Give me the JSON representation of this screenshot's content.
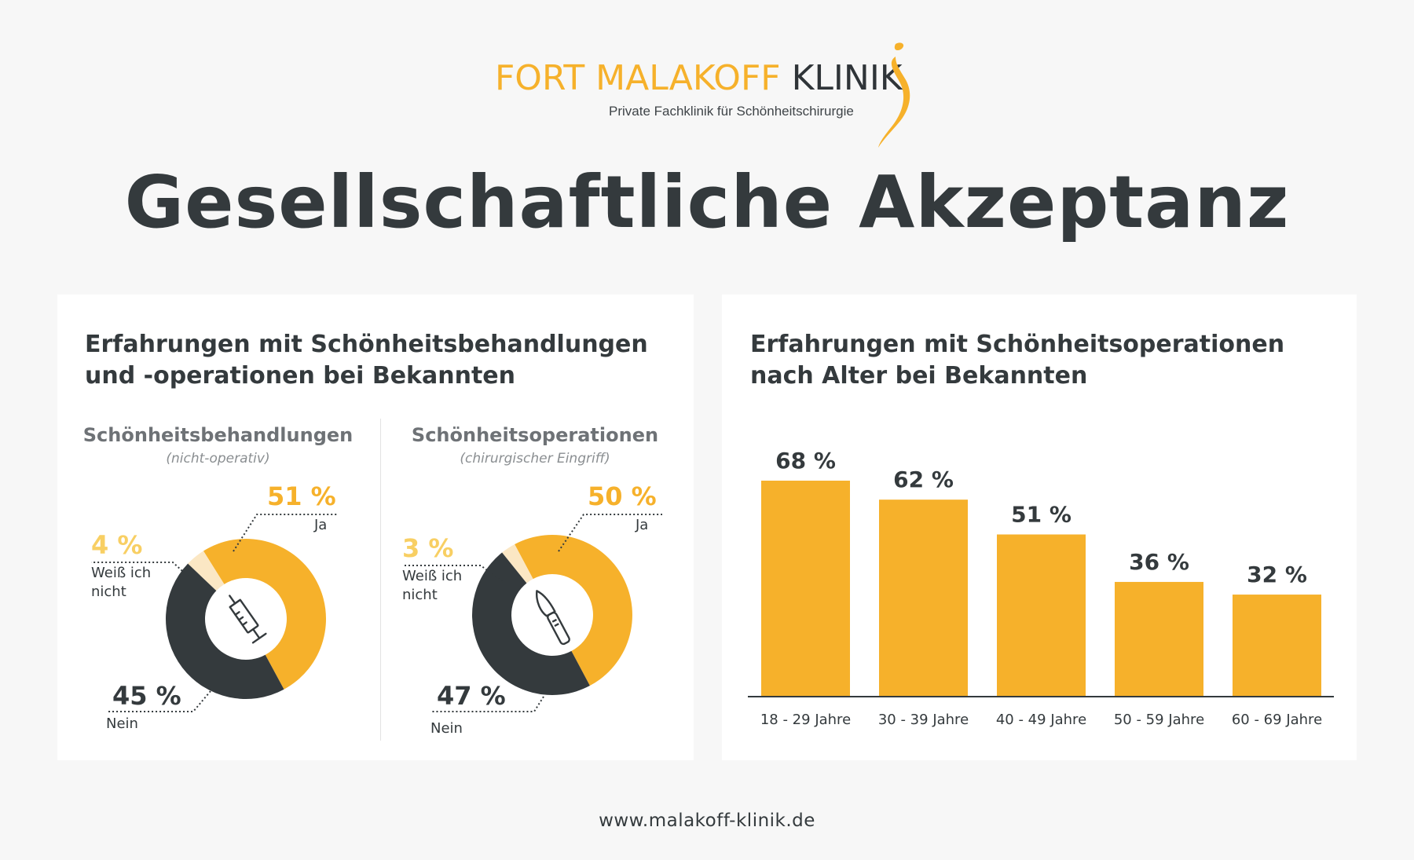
{
  "header": {
    "brand_part1": "FORT MALAKOFF",
    "brand_part2": "KLINIK",
    "subtitle": "Private Fachklinik für Schönheitschirurgie",
    "title": "Gesellschaftliche Akzeptanz"
  },
  "colors": {
    "accent": "#f6b12b",
    "light_accent": "#fbe7c4",
    "dark": "#343a3d",
    "background": "#f7f7f7",
    "panel": "#ffffff"
  },
  "left_panel": {
    "title_line1": "Erfahrungen mit Schönheitsbehandlungen",
    "title_line2": "und -operationen bei Bekannten",
    "donut1": {
      "heading": "Schönheitsbehandlungen",
      "subheading": "(nicht-operativ)",
      "icon": "syringe-icon",
      "yes_pct": "51 %",
      "yes_label": "Ja",
      "unsure_pct": "4 %",
      "unsure_label_line1": "Weiß ich",
      "unsure_label_line2": "nicht",
      "no_pct": "45 %",
      "no_label": "Nein"
    },
    "donut2": {
      "heading": "Schönheitsoperationen",
      "subheading": "(chirurgischer Eingriff)",
      "icon": "scalpel-icon",
      "yes_pct": "50 %",
      "yes_label": "Ja",
      "unsure_pct": "3 %",
      "unsure_label_line1": "Weiß ich",
      "unsure_label_line2": "nicht",
      "no_pct": "47 %",
      "no_label": "Nein"
    }
  },
  "right_panel": {
    "title_line1": "Erfahrungen mit Schönheitsoperationen",
    "title_line2": "nach Alter bei Bekannten"
  },
  "footer": {
    "url": "www.malakoff-klinik.de"
  },
  "chart_data": [
    {
      "type": "pie",
      "title": "Schönheitsbehandlungen (nicht-operativ)",
      "categories": [
        "Ja",
        "Weiß ich nicht",
        "Nein"
      ],
      "values": [
        51,
        4,
        45
      ],
      "unit": "%"
    },
    {
      "type": "pie",
      "title": "Schönheitsoperationen (chirurgischer Eingriff)",
      "categories": [
        "Ja",
        "Weiß ich nicht",
        "Nein"
      ],
      "values": [
        50,
        3,
        47
      ],
      "unit": "%"
    },
    {
      "type": "bar",
      "title": "Erfahrungen mit Schönheitsoperationen nach Alter bei Bekannten",
      "categories": [
        "18 - 29 Jahre",
        "30 - 39 Jahre",
        "40 - 49 Jahre",
        "50 - 59 Jahre",
        "60 - 69 Jahre"
      ],
      "values": [
        68,
        62,
        51,
        36,
        32
      ],
      "value_labels": [
        "68 %",
        "62 %",
        "51 %",
        "36 %",
        "32 %"
      ],
      "xlabel": "",
      "ylabel": "",
      "ylim": [
        0,
        68
      ]
    }
  ]
}
